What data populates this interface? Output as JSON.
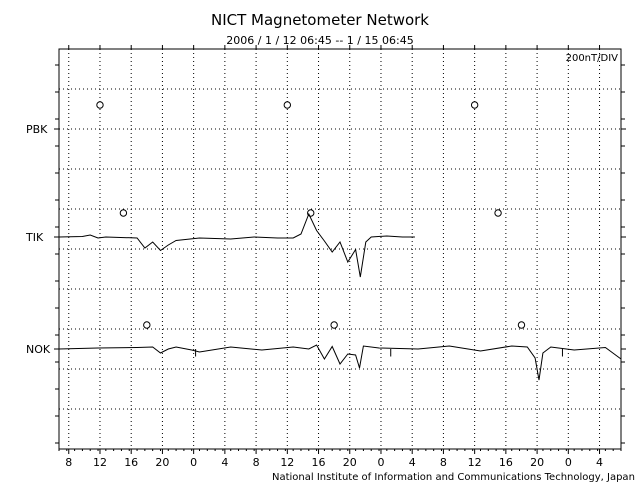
{
  "chart_data": {
    "type": "line",
    "title": "NICT Magnetometer Network",
    "subtitle": "2006 /  1 / 12   06:45 --  1 / 15   06:45",
    "scale_label": "200nT/DIV",
    "x_tick_labels": [
      "8",
      "12",
      "16",
      "20",
      "0",
      "4",
      "8",
      "12",
      "16",
      "20",
      "0",
      "4",
      "8",
      "12",
      "16",
      "20",
      "0",
      "4"
    ],
    "x_range_hours": [
      0,
      72
    ],
    "first_tick_hour_offset": 1.25,
    "grid": "dotted",
    "stations": [
      {
        "name": "PBK",
        "local_noon_hours": [
          5.25,
          29.25,
          53.25
        ],
        "series": []
      },
      {
        "name": "TIK",
        "local_noon_hours": [
          8.25,
          32.25,
          56.25
        ],
        "series": [
          [
            0,
            0
          ],
          [
            3,
            1
          ],
          [
            4,
            4
          ],
          [
            5,
            -2
          ],
          [
            6,
            0
          ],
          [
            10,
            -2
          ],
          [
            11,
            -22
          ],
          [
            12,
            -10
          ],
          [
            13,
            -27
          ],
          [
            14,
            -16
          ],
          [
            15,
            -7
          ],
          [
            18,
            -2
          ],
          [
            22,
            -4
          ],
          [
            25,
            0
          ],
          [
            28,
            -2
          ],
          [
            30,
            -2
          ],
          [
            31,
            6
          ],
          [
            32,
            46
          ],
          [
            33,
            13
          ],
          [
            34,
            -8
          ],
          [
            35,
            -30
          ],
          [
            36,
            -10
          ],
          [
            37,
            -50
          ],
          [
            38,
            -25
          ],
          [
            38.6,
            -80
          ],
          [
            39.3,
            -10
          ],
          [
            40,
            0
          ],
          [
            42,
            2
          ],
          [
            44,
            0
          ],
          [
            45.6,
            0
          ]
        ]
      },
      {
        "name": "NOK",
        "local_noon_hours": [
          11.25,
          35.25,
          59.25
        ],
        "series": [
          [
            0,
            0
          ],
          [
            5,
            2
          ],
          [
            10,
            3
          ],
          [
            12,
            4
          ],
          [
            13,
            -8
          ],
          [
            14,
            0
          ],
          [
            15,
            4
          ],
          [
            17,
            -2
          ],
          [
            18,
            -6
          ],
          [
            22,
            4
          ],
          [
            26,
            -2
          ],
          [
            30,
            4
          ],
          [
            32,
            0
          ],
          [
            33,
            8
          ],
          [
            34,
            -20
          ],
          [
            35,
            5
          ],
          [
            36,
            -30
          ],
          [
            37,
            -10
          ],
          [
            38,
            -12
          ],
          [
            38.5,
            -38
          ],
          [
            39,
            6
          ],
          [
            41,
            2
          ],
          [
            46,
            0
          ],
          [
            50,
            6
          ],
          [
            54,
            -4
          ],
          [
            58,
            6
          ],
          [
            60,
            4
          ],
          [
            61,
            -18
          ],
          [
            61.5,
            -62
          ],
          [
            62,
            -8
          ],
          [
            63,
            4
          ],
          [
            66,
            -2
          ],
          [
            70,
            3
          ],
          [
            72,
            -20
          ]
        ]
      }
    ],
    "spikes": [
      {
        "station": "NOK",
        "hour": 17.5,
        "dy": -30
      },
      {
        "station": "NOK",
        "hour": 42.5,
        "dy": -30
      },
      {
        "station": "NOK",
        "hour": 64.5,
        "dy": -30
      }
    ]
  },
  "footer": {
    "credit": "National Institute of Information and Communications Technology, Japan"
  }
}
